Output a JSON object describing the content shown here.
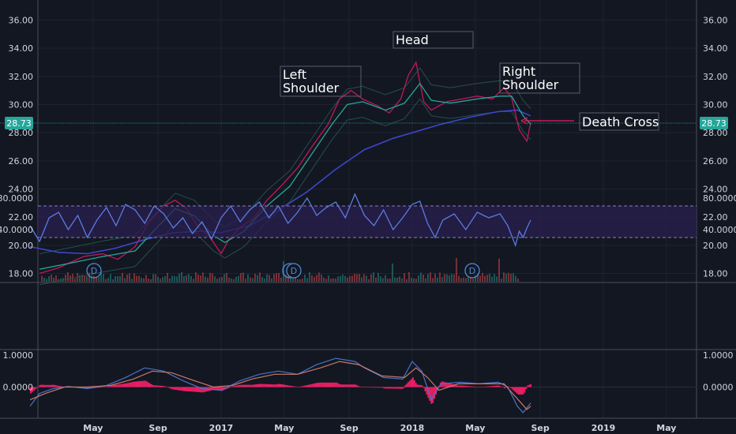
{
  "chart_data": {
    "type": "line",
    "price_axis": {
      "ticks": [
        "36.00",
        "34.00",
        "32.00",
        "30.00",
        "28.00",
        "26.00",
        "24.00",
        "22.00",
        "20.00",
        "18.00"
      ],
      "last_price": "28.73"
    },
    "time_axis": {
      "ticks": [
        "May",
        "Sep",
        "2017",
        "May",
        "Sep",
        "2018",
        "May",
        "Sep",
        "2019",
        "May"
      ]
    },
    "rsi_axis": {
      "ticks": [
        "80.0000",
        "40.0000"
      ]
    },
    "macd_axis": {
      "ticks": [
        "1.0000",
        "0.0000"
      ]
    },
    "annotations": [
      {
        "id": "left-shoulder",
        "lines": [
          "Left",
          "Shoulder"
        ]
      },
      {
        "id": "head",
        "lines": [
          "Head"
        ]
      },
      {
        "id": "right-shoulder",
        "lines": [
          "Right",
          "Shoulder"
        ]
      },
      {
        "id": "death-cross",
        "lines": [
          "Death Cross"
        ]
      }
    ],
    "dividend_marker": "D",
    "price_series": [
      [
        2016.05,
        18.0
      ],
      [
        2016.15,
        18.4
      ],
      [
        2016.28,
        19.2
      ],
      [
        2016.38,
        19.4
      ],
      [
        2016.46,
        19.0
      ],
      [
        2016.55,
        19.9
      ],
      [
        2016.62,
        21.6
      ],
      [
        2016.7,
        22.8
      ],
      [
        2016.76,
        23.2
      ],
      [
        2016.82,
        22.6
      ],
      [
        2016.88,
        21.3
      ],
      [
        2016.94,
        20.6
      ],
      [
        2017.0,
        19.4
      ],
      [
        2017.04,
        20.4
      ],
      [
        2017.1,
        21.3
      ],
      [
        2017.17,
        21.9
      ],
      [
        2017.24,
        23.2
      ],
      [
        2017.32,
        24.3
      ],
      [
        2017.4,
        25.5
      ],
      [
        2017.48,
        27.1
      ],
      [
        2017.56,
        28.6
      ],
      [
        2017.62,
        30.4
      ],
      [
        2017.68,
        31.0
      ],
      [
        2017.74,
        30.4
      ],
      [
        2017.82,
        29.9
      ],
      [
        2017.88,
        29.4
      ],
      [
        2017.94,
        30.4
      ],
      [
        2017.98,
        32.1
      ],
      [
        2018.02,
        33.0
      ],
      [
        2018.06,
        30.2
      ],
      [
        2018.1,
        29.6
      ],
      [
        2018.18,
        30.2
      ],
      [
        2018.26,
        30.4
      ],
      [
        2018.34,
        30.6
      ],
      [
        2018.42,
        30.4
      ],
      [
        2018.48,
        31.2
      ],
      [
        2018.52,
        30.5
      ],
      [
        2018.56,
        28.2
      ],
      [
        2018.6,
        27.4
      ],
      [
        2018.62,
        28.73
      ]
    ],
    "ma_fast": [
      [
        2016.05,
        18.3
      ],
      [
        2016.2,
        18.7
      ],
      [
        2016.38,
        19.2
      ],
      [
        2016.55,
        19.6
      ],
      [
        2016.66,
        21.2
      ],
      [
        2016.76,
        22.6
      ],
      [
        2016.86,
        22.1
      ],
      [
        2016.96,
        20.7
      ],
      [
        2017.02,
        20.2
      ],
      [
        2017.12,
        21.0
      ],
      [
        2017.24,
        22.8
      ],
      [
        2017.36,
        24.2
      ],
      [
        2017.48,
        26.6
      ],
      [
        2017.58,
        28.6
      ],
      [
        2017.66,
        30.0
      ],
      [
        2017.74,
        30.2
      ],
      [
        2017.86,
        29.6
      ],
      [
        2017.96,
        30.1
      ],
      [
        2018.04,
        31.5
      ],
      [
        2018.1,
        30.3
      ],
      [
        2018.2,
        30.1
      ],
      [
        2018.34,
        30.4
      ],
      [
        2018.46,
        30.6
      ],
      [
        2018.52,
        30.6
      ],
      [
        2018.58,
        29.2
      ],
      [
        2018.62,
        28.6
      ]
    ],
    "ma_slow": [
      [
        2016.0,
        19.9
      ],
      [
        2016.15,
        19.5
      ],
      [
        2016.3,
        19.4
      ],
      [
        2016.45,
        19.8
      ],
      [
        2016.6,
        20.4
      ],
      [
        2016.75,
        20.9
      ],
      [
        2016.9,
        21.0
      ],
      [
        2017.0,
        20.9
      ],
      [
        2017.15,
        21.4
      ],
      [
        2017.3,
        22.5
      ],
      [
        2017.45,
        23.8
      ],
      [
        2017.6,
        25.4
      ],
      [
        2017.75,
        26.8
      ],
      [
        2017.9,
        27.6
      ],
      [
        2018.0,
        28.0
      ],
      [
        2018.15,
        28.6
      ],
      [
        2018.3,
        29.1
      ],
      [
        2018.45,
        29.5
      ],
      [
        2018.55,
        29.6
      ],
      [
        2018.62,
        29.2
      ]
    ],
    "rsi_series": [
      [
        2016.0,
        45
      ],
      [
        2016.05,
        25
      ],
      [
        2016.1,
        55
      ],
      [
        2016.15,
        62
      ],
      [
        2016.2,
        40
      ],
      [
        2016.25,
        58
      ],
      [
        2016.3,
        30
      ],
      [
        2016.35,
        52
      ],
      [
        2016.4,
        68
      ],
      [
        2016.45,
        45
      ],
      [
        2016.5,
        72
      ],
      [
        2016.55,
        65
      ],
      [
        2016.6,
        48
      ],
      [
        2016.65,
        70
      ],
      [
        2016.7,
        60
      ],
      [
        2016.75,
        42
      ],
      [
        2016.8,
        55
      ],
      [
        2016.85,
        35
      ],
      [
        2016.9,
        50
      ],
      [
        2016.95,
        28
      ],
      [
        2017.0,
        55
      ],
      [
        2017.05,
        70
      ],
      [
        2017.1,
        50
      ],
      [
        2017.15,
        65
      ],
      [
        2017.2,
        75
      ],
      [
        2017.25,
        55
      ],
      [
        2017.3,
        70
      ],
      [
        2017.35,
        48
      ],
      [
        2017.4,
        62
      ],
      [
        2017.45,
        80
      ],
      [
        2017.5,
        58
      ],
      [
        2017.55,
        68
      ],
      [
        2017.6,
        75
      ],
      [
        2017.65,
        55
      ],
      [
        2017.7,
        85
      ],
      [
        2017.75,
        58
      ],
      [
        2017.8,
        45
      ],
      [
        2017.85,
        65
      ],
      [
        2017.9,
        40
      ],
      [
        2017.95,
        55
      ],
      [
        2018.0,
        72
      ],
      [
        2018.04,
        76
      ],
      [
        2018.08,
        48
      ],
      [
        2018.12,
        30
      ],
      [
        2018.16,
        52
      ],
      [
        2018.22,
        60
      ],
      [
        2018.28,
        40
      ],
      [
        2018.34,
        62
      ],
      [
        2018.4,
        55
      ],
      [
        2018.46,
        60
      ],
      [
        2018.5,
        45
      ],
      [
        2018.54,
        20
      ],
      [
        2018.56,
        38
      ],
      [
        2018.58,
        30
      ],
      [
        2018.6,
        42
      ],
      [
        2018.62,
        52
      ]
    ],
    "rsi_bands": [
      70,
      30
    ],
    "macd_series": [
      [
        2016.0,
        -0.6
      ],
      [
        2016.05,
        -0.2
      ],
      [
        2016.12,
        -0.05
      ],
      [
        2016.2,
        0.02
      ],
      [
        2016.3,
        -0.05
      ],
      [
        2016.4,
        0.05
      ],
      [
        2016.5,
        0.3
      ],
      [
        2016.6,
        0.6
      ],
      [
        2016.7,
        0.5
      ],
      [
        2016.8,
        0.2
      ],
      [
        2016.9,
        -0.05
      ],
      [
        2017.0,
        -0.1
      ],
      [
        2017.1,
        0.2
      ],
      [
        2017.2,
        0.4
      ],
      [
        2017.3,
        0.5
      ],
      [
        2017.4,
        0.4
      ],
      [
        2017.5,
        0.7
      ],
      [
        2017.6,
        0.9
      ],
      [
        2017.7,
        0.8
      ],
      [
        2017.75,
        0.6
      ],
      [
        2017.85,
        0.3
      ],
      [
        2017.95,
        0.25
      ],
      [
        2018.0,
        0.8
      ],
      [
        2018.05,
        0.5
      ],
      [
        2018.1,
        -0.4
      ],
      [
        2018.15,
        0.1
      ],
      [
        2018.25,
        0.15
      ],
      [
        2018.35,
        0.1
      ],
      [
        2018.45,
        0.15
      ],
      [
        2018.5,
        0.0
      ],
      [
        2018.55,
        -0.6
      ],
      [
        2018.58,
        -0.8
      ],
      [
        2018.62,
        -0.5
      ]
    ],
    "macd_signal": [
      [
        2016.0,
        -0.4
      ],
      [
        2016.08,
        -0.2
      ],
      [
        2016.18,
        0.0
      ],
      [
        2016.3,
        0.0
      ],
      [
        2016.42,
        0.05
      ],
      [
        2016.54,
        0.25
      ],
      [
        2016.64,
        0.5
      ],
      [
        2016.74,
        0.45
      ],
      [
        2016.86,
        0.2
      ],
      [
        2016.96,
        0.0
      ],
      [
        2017.06,
        0.05
      ],
      [
        2017.16,
        0.25
      ],
      [
        2017.28,
        0.4
      ],
      [
        2017.4,
        0.4
      ],
      [
        2017.52,
        0.6
      ],
      [
        2017.62,
        0.8
      ],
      [
        2017.72,
        0.7
      ],
      [
        2017.84,
        0.35
      ],
      [
        2017.96,
        0.3
      ],
      [
        2018.02,
        0.6
      ],
      [
        2018.08,
        0.3
      ],
      [
        2018.14,
        -0.1
      ],
      [
        2018.24,
        0.1
      ],
      [
        2018.36,
        0.1
      ],
      [
        2018.48,
        0.1
      ],
      [
        2018.54,
        -0.3
      ],
      [
        2018.6,
        -0.7
      ],
      [
        2018.62,
        -0.6
      ]
    ],
    "colors": {
      "background": "#131722",
      "grid": "#2a2e39",
      "text": "#d1d4dc",
      "price": "#c2185b",
      "ma_fast": "#26a69a",
      "ma_slow": "#3d46c9",
      "bands": "#24504c",
      "rsi": "#5b7be0",
      "rsi_fill": "#2a1f4f",
      "macd": "#4a72c8",
      "signal": "#c77a6a",
      "hist": "#e91e63",
      "volume_up": "#26a69a",
      "volume_down": "#ef5350",
      "arrow": "#e91e63"
    }
  }
}
